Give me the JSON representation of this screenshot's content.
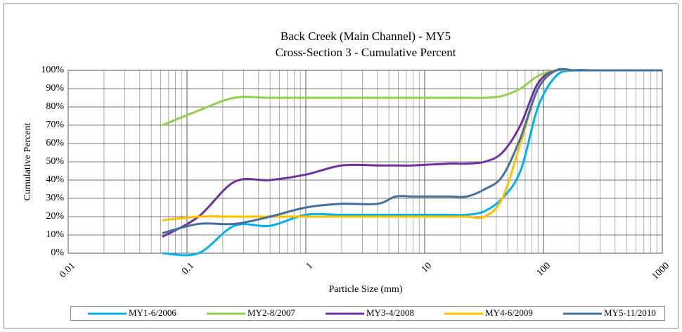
{
  "chart_data": {
    "type": "line",
    "title": "Back Creek (Main Channel) - MY5",
    "subtitle": "Cross-Section 3 - Cumulative Percent",
    "x_label": "Particle Size (mm)",
    "y_label": "Cumulative Percent",
    "x": [
      0.062,
      0.125,
      0.25,
      0.5,
      1,
      2,
      4,
      5.7,
      8,
      16,
      22.6,
      32,
      45,
      64,
      90,
      128,
      180,
      256,
      512,
      1000
    ],
    "series": [
      {
        "name": "MY1-6/2006",
        "color": "#00b0f0",
        "values": [
          0,
          0,
          15,
          15,
          21,
          21,
          21,
          21,
          21,
          21,
          21,
          23,
          30,
          45,
          80,
          97,
          100,
          100,
          100,
          100
        ]
      },
      {
        "name": "MY2-8/2007",
        "color": "#92d050",
        "values": [
          70,
          78,
          85,
          85,
          85,
          85,
          85,
          85,
          85,
          85,
          85,
          85,
          86,
          90,
          97,
          100,
          100,
          100,
          100,
          100
        ]
      },
      {
        "name": "MY3-4/2008",
        "color": "#7030a0",
        "values": [
          9,
          20,
          39,
          40,
          43,
          48,
          48,
          48,
          48,
          49,
          49,
          50,
          55,
          70,
          93,
          100,
          100,
          100,
          100,
          100
        ]
      },
      {
        "name": "MY4-6/2009",
        "color": "#ffc000",
        "values": [
          18,
          20,
          20,
          20,
          20,
          20,
          20,
          20,
          20,
          20,
          20,
          20,
          30,
          60,
          90,
          100,
          100,
          100,
          100,
          100
        ]
      },
      {
        "name": "MY5-11/2010",
        "color": "#44709f",
        "values": [
          11,
          16,
          16,
          20,
          25,
          27,
          27,
          31,
          31,
          31,
          31,
          35,
          42,
          63,
          90,
          100,
          100,
          100,
          100,
          100
        ]
      }
    ],
    "xlim": [
      0.01,
      1000
    ],
    "xticks": [
      0.01,
      0.1,
      1,
      10,
      100,
      1000
    ],
    "x_log": true,
    "ylim": [
      0,
      100
    ],
    "yticks": [
      {
        "value": 0,
        "label": "0%"
      },
      {
        "value": 10,
        "label": "10%"
      },
      {
        "value": 20,
        "label": "20%"
      },
      {
        "value": 30,
        "label": "30%"
      },
      {
        "value": 40,
        "label": "40%"
      },
      {
        "value": 50,
        "label": "50%"
      },
      {
        "value": 60,
        "label": "60%"
      },
      {
        "value": 70,
        "label": "70%"
      },
      {
        "value": 80,
        "label": "80%"
      },
      {
        "value": 90,
        "label": "90%"
      },
      {
        "value": 100,
        "label": "100%"
      }
    ],
    "grid": true,
    "minor_grid": true,
    "legend": "bottom"
  }
}
